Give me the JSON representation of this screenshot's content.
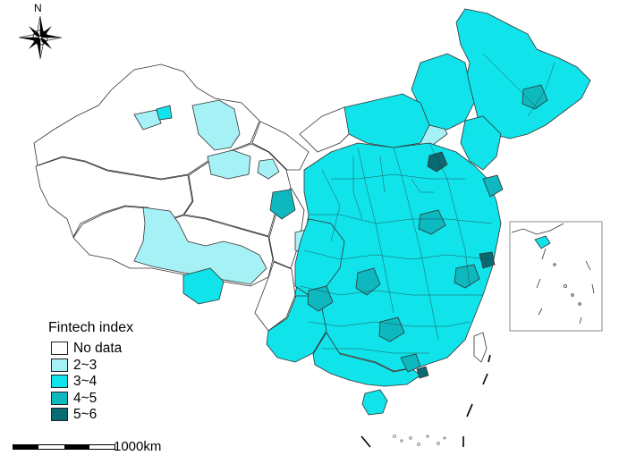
{
  "north_label": "N",
  "legend": {
    "title": "Fintech index",
    "items": [
      {
        "label": "No data",
        "color": "#ffffff"
      },
      {
        "label": "2~3",
        "color": "#a5f1f5"
      },
      {
        "label": "3~4",
        "color": "#10e3ea"
      },
      {
        "label": "4~5",
        "color": "#0eb8bf"
      },
      {
        "label": "5~6",
        "color": "#0a6a72"
      }
    ]
  },
  "scale": {
    "label": "1000km"
  },
  "colors": {
    "border": "#333333",
    "frame": "#888888"
  }
}
